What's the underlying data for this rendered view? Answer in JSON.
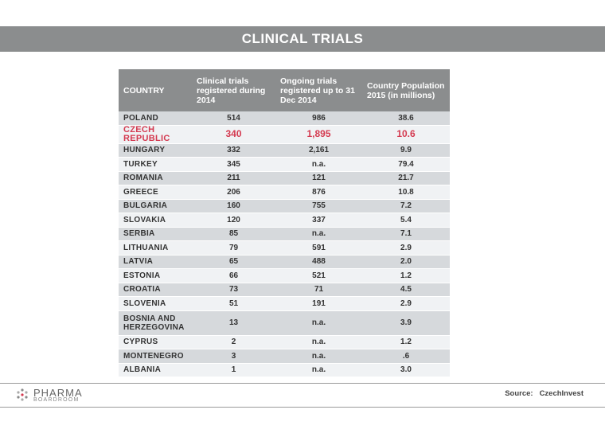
{
  "page": {
    "title": "CLINICAL TRIALS"
  },
  "table": {
    "headers": [
      "COUNTRY",
      "Clinical trials registered during 2014",
      "Ongoing trials registered up to 31 Dec 2014",
      "Country Population 2015 (in millions)"
    ],
    "rows": [
      {
        "country": "POLAND",
        "trials": "514",
        "ongoing": "986",
        "population": "38.6"
      },
      {
        "country": "CZECH REPUBLIC",
        "trials": "340",
        "ongoing": "1,895",
        "population": "10.6",
        "highlight": true
      },
      {
        "country": "HUNGARY",
        "trials": "332",
        "ongoing": "2,161",
        "population": "9.9"
      },
      {
        "country": "TURKEY",
        "trials": "345",
        "ongoing": "n.a.",
        "population": "79.4"
      },
      {
        "country": "ROMANIA",
        "trials": "211",
        "ongoing": "121",
        "population": "21.7"
      },
      {
        "country": "GREECE",
        "trials": "206",
        "ongoing": "876",
        "population": "10.8"
      },
      {
        "country": "BULGARIA",
        "trials": "160",
        "ongoing": "755",
        "population": "7.2"
      },
      {
        "country": "SLOVAKIA",
        "trials": "120",
        "ongoing": "337",
        "population": "5.4"
      },
      {
        "country": "SERBIA",
        "trials": "85",
        "ongoing": "n.a.",
        "population": "7.1"
      },
      {
        "country": "LITHUANIA",
        "trials": "79",
        "ongoing": "591",
        "population": "2.9"
      },
      {
        "country": "LATVIA",
        "trials": "65",
        "ongoing": "488",
        "population": "2.0"
      },
      {
        "country": "ESTONIA",
        "trials": "66",
        "ongoing": "521",
        "population": "1.2"
      },
      {
        "country": "CROATIA",
        "trials": "73",
        "ongoing": "71",
        "population": "4.5"
      },
      {
        "country": "SLOVENIA",
        "trials": "51",
        "ongoing": "191",
        "population": "2.9"
      },
      {
        "country": "BOSNIA AND HERZEGOVINA",
        "trials": "13",
        "ongoing": "n.a.",
        "population": "3.9"
      },
      {
        "country": "CYPRUS",
        "trials": "2",
        "ongoing": "n.a.",
        "population": "1.2"
      },
      {
        "country": "MONTENEGRO",
        "trials": "3",
        "ongoing": "n.a.",
        "population": ".6"
      },
      {
        "country": "ALBANIA",
        "trials": "1",
        "ongoing": "n.a.",
        "population": "3.0"
      }
    ]
  },
  "colors": {
    "header_bg": "#8b8d8e",
    "highlight": "#d43a50",
    "row_dark": "#d6d9dc",
    "row_light": "#f0f2f4"
  },
  "footer": {
    "logo_main": "PHARMA",
    "logo_sub": "BOARDROOM",
    "logo_icon": "pharma-dots-icon",
    "source_label": "Source:",
    "source_value": "CzechInvest"
  }
}
